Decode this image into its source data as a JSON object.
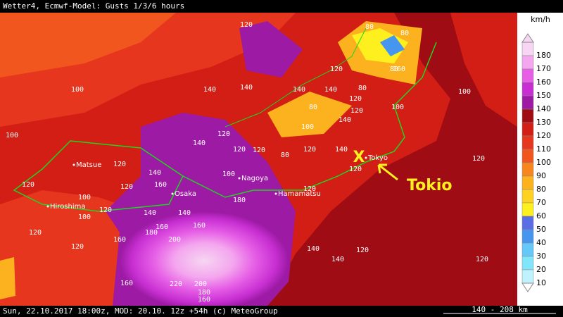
{
  "header": {
    "title": "Wetter4, Ecmwf-Model: Gusts 1/3/6 hours"
  },
  "footer": {
    "info": "Sun, 22.10.2017 18:00z, MOD: 20.10. 12z +54h (c) MeteoGroup",
    "scale": "140 - 208 km"
  },
  "annotation": {
    "label": "Tokio",
    "marker": "X"
  },
  "cities": [
    "Matsue",
    "Hiroshima",
    "Osaka",
    "Nagoya",
    "Hamamatsu",
    "Tokyo"
  ],
  "contour_labels": [
    120,
    100,
    100,
    80,
    80,
    80,
    80,
    120,
    160,
    140,
    140,
    140,
    140,
    140,
    120,
    120,
    120,
    80,
    100,
    80,
    120,
    120,
    140,
    100,
    100,
    120,
    120,
    120,
    140,
    160,
    120,
    100,
    120,
    100,
    140,
    140,
    160,
    160,
    180,
    120,
    120,
    160,
    200,
    220,
    200,
    180,
    160,
    160,
    140,
    140,
    120,
    120,
    180,
    100,
    120,
    120,
    120,
    140
  ],
  "legend": {
    "unit": "km/h",
    "levels": [
      {
        "value": 180,
        "color": "#f6d6f2"
      },
      {
        "value": 170,
        "color": "#f4a6ee"
      },
      {
        "value": 160,
        "color": "#e65fe6"
      },
      {
        "value": 150,
        "color": "#c82fd2"
      },
      {
        "value": 140,
        "color": "#9c1aa4"
      },
      {
        "value": 130,
        "color": "#a00c14"
      },
      {
        "value": 120,
        "color": "#d21e14"
      },
      {
        "value": 110,
        "color": "#e6371e"
      },
      {
        "value": 100,
        "color": "#f0561e"
      },
      {
        "value": 90,
        "color": "#f8861e"
      },
      {
        "value": 80,
        "color": "#fcb21e"
      },
      {
        "value": 70,
        "color": "#fed21e"
      },
      {
        "value": 60,
        "color": "#fef01e"
      },
      {
        "value": 50,
        "color": "#5a6ee6"
      },
      {
        "value": 40,
        "color": "#4696f0"
      },
      {
        "value": 30,
        "color": "#64c8f8"
      },
      {
        "value": 20,
        "color": "#82e6fa"
      },
      {
        "value": 10,
        "color": "#bef2fc"
      }
    ]
  }
}
